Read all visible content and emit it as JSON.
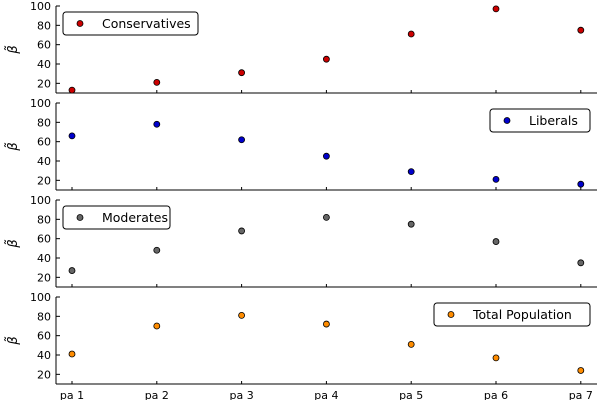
{
  "chart_data": {
    "type": "scatter",
    "categories": [
      "pa 1",
      "pa 2",
      "pa 3",
      "pa 4",
      "pa 5",
      "pa 6",
      "pa 7"
    ],
    "ylabel": "β̃",
    "ylim": [
      10,
      100
    ],
    "yticks": [
      20,
      40,
      60,
      80,
      100
    ],
    "grid": false,
    "series": [
      {
        "name": "Conservatives",
        "color": "#cc0000",
        "values": [
          13,
          21,
          31,
          45,
          71,
          97,
          75
        ],
        "legend_position": "top-left"
      },
      {
        "name": "Liberals",
        "color": "#0000cc",
        "values": [
          66,
          78,
          62,
          45,
          29,
          21,
          16
        ],
        "legend_position": "top-right"
      },
      {
        "name": "Moderates",
        "color": "#666666",
        "values": [
          27,
          48,
          68,
          82,
          75,
          57,
          35
        ],
        "legend_position": "top-left"
      },
      {
        "name": "Total Population",
        "color": "#ff8c00",
        "values": [
          41,
          70,
          81,
          72,
          51,
          37,
          24
        ],
        "legend_position": "top-right"
      }
    ]
  }
}
